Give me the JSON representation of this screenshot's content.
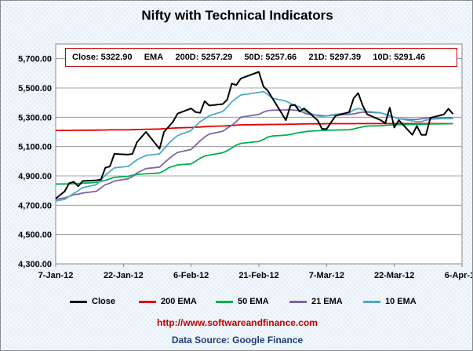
{
  "chart_data": {
    "type": "line",
    "title": "Nifty with Technical Indicators",
    "ylim": [
      4300,
      5800
    ],
    "yticks": [
      "4,300.00",
      "4,500.00",
      "4,700.00",
      "4,900.00",
      "5,100.00",
      "5,300.00",
      "5,500.00",
      "5,700.00"
    ],
    "ytick_values": [
      4300,
      4500,
      4700,
      4900,
      5100,
      5300,
      5500,
      5700
    ],
    "xlim": [
      "2012-01-07",
      "2012-04-06"
    ],
    "xticks": [
      "7-Jan-12",
      "22-Jan-12",
      "6-Feb-12",
      "21-Feb-12",
      "7-Mar-12",
      "22-Mar-12",
      "6-Apr-12"
    ],
    "xtick_values": [
      "2012-01-07",
      "2012-01-22",
      "2012-02-06",
      "2012-02-21",
      "2012-03-07",
      "2012-03-22",
      "2012-04-06"
    ],
    "grid": "horizontal",
    "legend_position": "bottom",
    "x": [
      "2012-01-07",
      "2012-01-09",
      "2012-01-10",
      "2012-01-11",
      "2012-01-12",
      "2012-01-13",
      "2012-01-16",
      "2012-01-17",
      "2012-01-18",
      "2012-01-19",
      "2012-01-20",
      "2012-01-23",
      "2012-01-24",
      "2012-01-25",
      "2012-01-27",
      "2012-01-30",
      "2012-01-31",
      "2012-02-01",
      "2012-02-02",
      "2012-02-03",
      "2012-02-06",
      "2012-02-07",
      "2012-02-08",
      "2012-02-09",
      "2012-02-10",
      "2012-02-13",
      "2012-02-14",
      "2012-02-15",
      "2012-02-16",
      "2012-02-17",
      "2012-02-21",
      "2012-02-22",
      "2012-02-23",
      "2012-02-24",
      "2012-02-27",
      "2012-02-28",
      "2012-02-29",
      "2012-03-01",
      "2012-03-02",
      "2012-03-03",
      "2012-03-05",
      "2012-03-06",
      "2012-03-07",
      "2012-03-09",
      "2012-03-12",
      "2012-03-13",
      "2012-03-14",
      "2012-03-15",
      "2012-03-16",
      "2012-03-19",
      "2012-03-20",
      "2012-03-21",
      "2012-03-22",
      "2012-03-23",
      "2012-03-26",
      "2012-03-27",
      "2012-03-28",
      "2012-03-29",
      "2012-03-30",
      "2012-04-02",
      "2012-04-03",
      "2012-04-04"
    ],
    "series": [
      {
        "name": "Close",
        "color": "#000000",
        "values": [
          4745,
          4795,
          4850,
          4860,
          4830,
          4865,
          4870,
          4875,
          4955,
          4965,
          5050,
          5045,
          5050,
          5130,
          5200,
          5085,
          5200,
          5235,
          5270,
          5325,
          5360,
          5335,
          5330,
          5410,
          5380,
          5390,
          5420,
          5530,
          5520,
          5565,
          5610,
          5510,
          5480,
          5430,
          5280,
          5380,
          5385,
          5340,
          5360,
          5335,
          5280,
          5220,
          5220,
          5310,
          5335,
          5430,
          5465,
          5380,
          5320,
          5280,
          5260,
          5365,
          5230,
          5280,
          5180,
          5240,
          5180,
          5180,
          5296,
          5320,
          5358,
          5322
        ]
      },
      {
        "name": "200 EMA",
        "color": "#e00000",
        "values": [
          5210,
          5210,
          5210,
          5211,
          5211,
          5212,
          5212,
          5213,
          5213,
          5214,
          5214,
          5214,
          5215,
          5216,
          5218,
          5220,
          5222,
          5224,
          5226,
          5228,
          5230,
          5232,
          5234,
          5236,
          5238,
          5240,
          5242,
          5244,
          5246,
          5248,
          5250,
          5250,
          5251,
          5251,
          5252,
          5253,
          5253,
          5254,
          5254,
          5255,
          5255,
          5255,
          5256,
          5256,
          5256,
          5256,
          5257,
          5257,
          5257,
          5257,
          5257,
          5257,
          5257,
          5257,
          5257,
          5257,
          5257,
          5257,
          5257,
          5257,
          5257,
          5257
        ]
      },
      {
        "name": "50 EMA",
        "color": "#00b050",
        "values": [
          4845,
          4845,
          4846,
          4847,
          4848,
          4850,
          4855,
          4862,
          4870,
          4880,
          4890,
          4897,
          4905,
          4910,
          4914,
          4920,
          4935,
          4955,
          4966,
          4975,
          4982,
          5000,
          5020,
          5035,
          5042,
          5058,
          5072,
          5090,
          5110,
          5122,
          5135,
          5148,
          5165,
          5172,
          5178,
          5183,
          5190,
          5196,
          5200,
          5205,
          5208,
          5210,
          5212,
          5213,
          5215,
          5220,
          5228,
          5235,
          5240,
          5242,
          5245,
          5246,
          5250,
          5250,
          5251,
          5252,
          5252,
          5253,
          5254,
          5255,
          5256,
          5257
        ]
      },
      {
        "name": "21 EMA",
        "color": "#8064a2",
        "values": [
          4740,
          4750,
          4760,
          4772,
          4775,
          4783,
          4795,
          4818,
          4840,
          4850,
          4865,
          4880,
          4895,
          4920,
          4950,
          4960,
          4988,
          5015,
          5040,
          5060,
          5080,
          5110,
          5140,
          5165,
          5185,
          5205,
          5225,
          5245,
          5270,
          5300,
          5320,
          5335,
          5345,
          5348,
          5350,
          5352,
          5348,
          5345,
          5330,
          5320,
          5315,
          5312,
          5310,
          5315,
          5320,
          5322,
          5330,
          5335,
          5335,
          5330,
          5320,
          5310,
          5300,
          5290,
          5285,
          5285,
          5290,
          5294,
          5297,
          5297,
          5297,
          5297
        ]
      },
      {
        "name": "10 EMA",
        "color": "#4bacc6",
        "values": [
          4728,
          4740,
          4760,
          4780,
          4800,
          4820,
          4840,
          4870,
          4905,
          4930,
          4955,
          4965,
          4985,
          5010,
          5040,
          5050,
          5085,
          5120,
          5150,
          5175,
          5210,
          5240,
          5270,
          5290,
          5310,
          5340,
          5370,
          5405,
          5430,
          5452,
          5470,
          5475,
          5455,
          5430,
          5410,
          5395,
          5380,
          5370,
          5345,
          5330,
          5310,
          5305,
          5310,
          5320,
          5330,
          5350,
          5360,
          5352,
          5340,
          5330,
          5320,
          5312,
          5300,
          5290,
          5275,
          5270,
          5270,
          5280,
          5286,
          5291,
          5291,
          5291
        ]
      }
    ]
  },
  "stats": {
    "close": "Close: 5322.90",
    "ema_label": "EMA",
    "d200": "200D: 5257.29",
    "d50": "50D: 5257.66",
    "d21": "21D: 5297.39",
    "d10": "10D: 5291.46"
  },
  "footer": {
    "url": "http://www.softwareandfinance.com",
    "source": "Data Source: Google Finance"
  }
}
